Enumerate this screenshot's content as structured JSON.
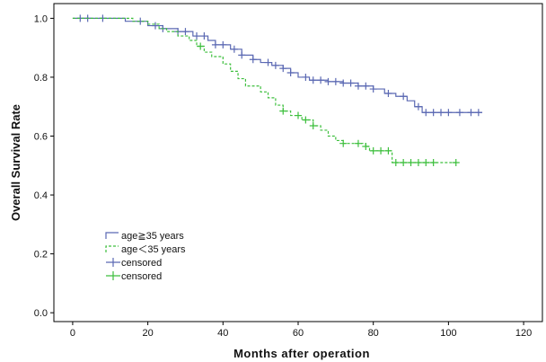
{
  "chart_data": {
    "type": "line",
    "subtype": "kaplan-meier-step",
    "xlabel": "Months after operation",
    "ylabel": "Overall Survival Rate",
    "xlim": [
      -5,
      125
    ],
    "ylim": [
      -0.03,
      1.05
    ],
    "xticks": [
      0,
      20,
      40,
      60,
      80,
      100,
      120
    ],
    "yticks": [
      0.0,
      0.2,
      0.4,
      0.6,
      0.8,
      1.0
    ],
    "ytick_labels": [
      "0.0",
      "0.2",
      "0.4",
      "0.6",
      "0.8",
      "1.0"
    ],
    "grid": false,
    "legend_position": "bottom-left",
    "legend": [
      {
        "label": "age≧35 years",
        "kind": "line",
        "series": 0
      },
      {
        "label": "age＜35 years",
        "kind": "line",
        "series": 1
      },
      {
        "label": "censored",
        "kind": "marker",
        "series": 0
      },
      {
        "label": "censored",
        "kind": "marker",
        "series": 1
      }
    ],
    "series": [
      {
        "color": "#5b69b3",
        "dash": "none",
        "steps": [
          [
            0,
            1.0
          ],
          [
            14,
            0.99
          ],
          [
            20,
            0.975
          ],
          [
            24,
            0.965
          ],
          [
            28,
            0.955
          ],
          [
            32,
            0.94
          ],
          [
            36,
            0.925
          ],
          [
            38,
            0.91
          ],
          [
            42,
            0.895
          ],
          [
            45,
            0.875
          ],
          [
            48,
            0.86
          ],
          [
            50,
            0.85
          ],
          [
            53,
            0.84
          ],
          [
            56,
            0.83
          ],
          [
            58,
            0.815
          ],
          [
            60,
            0.8
          ],
          [
            63,
            0.79
          ],
          [
            68,
            0.785
          ],
          [
            72,
            0.78
          ],
          [
            76,
            0.77
          ],
          [
            80,
            0.76
          ],
          [
            83,
            0.745
          ],
          [
            86,
            0.735
          ],
          [
            89,
            0.72
          ],
          [
            91,
            0.7
          ],
          [
            93,
            0.68
          ],
          [
            109,
            0.68
          ]
        ],
        "censored": [
          2,
          4,
          8,
          18,
          22,
          24,
          28,
          30,
          33,
          35,
          38,
          40,
          43,
          45,
          48,
          52,
          54,
          56,
          58,
          62,
          64,
          66,
          68,
          70,
          72,
          74,
          76,
          78,
          80,
          84,
          88,
          92,
          94,
          96,
          98,
          100,
          103,
          106,
          108
        ]
      },
      {
        "color": "#3dbf3d",
        "dash": "3,2",
        "steps": [
          [
            0,
            1.0
          ],
          [
            16,
            0.99
          ],
          [
            20,
            0.98
          ],
          [
            23,
            0.965
          ],
          [
            25,
            0.955
          ],
          [
            28,
            0.94
          ],
          [
            31,
            0.925
          ],
          [
            33,
            0.905
          ],
          [
            35,
            0.885
          ],
          [
            37,
            0.87
          ],
          [
            40,
            0.845
          ],
          [
            42,
            0.82
          ],
          [
            44,
            0.795
          ],
          [
            46,
            0.77
          ],
          [
            50,
            0.75
          ],
          [
            52,
            0.73
          ],
          [
            54,
            0.705
          ],
          [
            56,
            0.685
          ],
          [
            58,
            0.67
          ],
          [
            61,
            0.655
          ],
          [
            64,
            0.635
          ],
          [
            66,
            0.62
          ],
          [
            68,
            0.6
          ],
          [
            70,
            0.585
          ],
          [
            72,
            0.575
          ],
          [
            78,
            0.565
          ],
          [
            79,
            0.55
          ],
          [
            85,
            0.51
          ],
          [
            102,
            0.51
          ]
        ],
        "censored": [
          34,
          56,
          60,
          62,
          64,
          72,
          76,
          78,
          80,
          82,
          84,
          86,
          88,
          90,
          92,
          94,
          96,
          102
        ]
      }
    ]
  }
}
